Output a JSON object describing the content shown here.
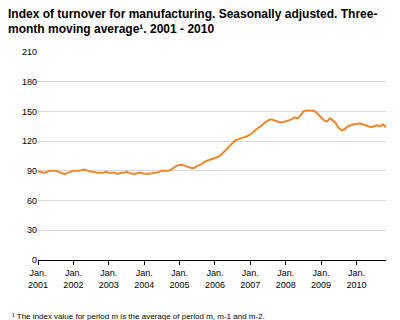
{
  "chart_data": {
    "type": "line",
    "title": "Index of turnover for manufacturing. Seasonally adjusted. Three-\nmonth moving average¹. 2001 - 2010",
    "footnote": "¹ The index value for period m is the average of period m, m-1 and m-2.",
    "color": "#f0862a",
    "grid": true,
    "ylim": [
      0,
      210
    ],
    "yticks": [
      0,
      30,
      60,
      90,
      120,
      150,
      180,
      210
    ],
    "categories": [
      "Jan. 2001",
      null,
      null,
      null,
      null,
      null,
      null,
      null,
      null,
      null,
      null,
      null,
      "Jan. 2002",
      null,
      null,
      null,
      null,
      null,
      null,
      null,
      null,
      null,
      null,
      null,
      "Jan. 2003",
      null,
      null,
      null,
      null,
      null,
      null,
      null,
      null,
      null,
      null,
      null,
      "Jan. 2004",
      null,
      null,
      null,
      null,
      null,
      null,
      null,
      null,
      null,
      null,
      null,
      "Jan. 2005",
      null,
      null,
      null,
      null,
      null,
      null,
      null,
      null,
      null,
      null,
      null,
      "Jan. 2006",
      null,
      null,
      null,
      null,
      null,
      null,
      null,
      null,
      null,
      null,
      null,
      "Jan. 2007",
      null,
      null,
      null,
      null,
      null,
      null,
      null,
      null,
      null,
      null,
      null,
      "Jan. 2008",
      null,
      null,
      null,
      null,
      null,
      null,
      null,
      null,
      null,
      null,
      null,
      "Jan. 2009",
      null,
      null,
      null,
      null,
      null,
      null,
      null,
      null,
      null,
      null,
      null,
      "Jan. 2010",
      null,
      null,
      null,
      null,
      null,
      null,
      null,
      null,
      null,
      null
    ],
    "values": [
      89,
      89,
      88,
      89,
      90,
      90,
      90,
      89,
      88,
      87,
      88,
      89,
      90,
      90,
      90,
      91,
      91,
      90,
      89,
      89,
      88,
      88,
      88,
      89,
      88,
      88,
      88,
      87,
      88,
      88,
      89,
      88,
      87,
      87,
      88,
      88,
      87,
      87,
      87,
      88,
      88,
      89,
      90,
      90,
      90,
      91,
      93,
      95,
      96,
      96,
      95,
      94,
      93,
      93,
      95,
      96,
      98,
      100,
      101,
      102,
      103,
      104,
      106,
      109,
      113,
      116,
      119,
      121,
      122,
      123,
      124,
      125,
      127,
      129,
      132,
      134,
      136,
      139,
      141,
      142,
      141,
      140,
      139,
      139,
      140,
      141,
      142,
      144,
      143,
      146,
      150,
      151,
      151,
      151,
      150,
      147,
      143,
      141,
      140,
      143,
      141,
      138,
      133,
      131,
      132,
      135,
      136,
      137,
      137,
      138,
      137,
      136,
      135,
      134,
      135,
      136,
      135,
      137,
      134
    ]
  }
}
